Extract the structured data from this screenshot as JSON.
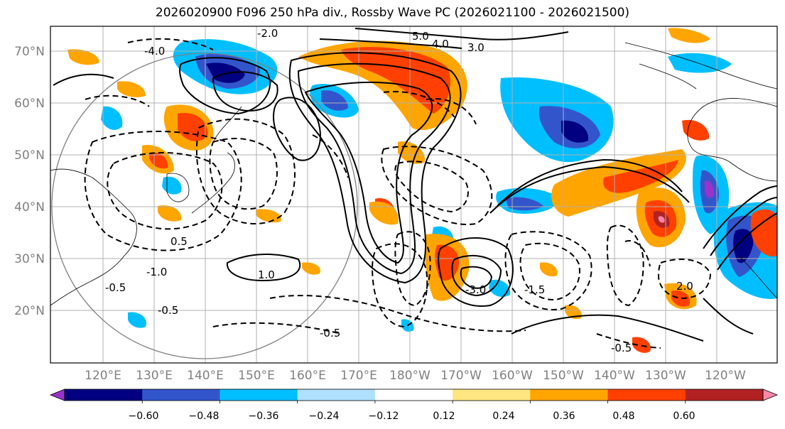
{
  "title": "2026020900 F096 250 hPa div., Rossby Wave PC (2026021100 - 2026021500)",
  "lat_labels": [
    "70°N",
    "60°N",
    "50°N",
    "40°N",
    "30°N",
    "20°N"
  ],
  "lon_labels": [
    "120°E",
    "130°E",
    "140°E",
    "150°E",
    "160°E",
    "170°E",
    "180°W",
    "170°W",
    "160°W",
    "150°W",
    "140°W",
    "130°W",
    "120°W"
  ],
  "colorbar": {
    "ticks": [
      "−0.60",
      "−0.48",
      "−0.36",
      "−0.24",
      "−0.12",
      "0.12",
      "0.24",
      "0.36",
      "0.48",
      "0.60"
    ],
    "colors": [
      "#9933cc",
      "#000080",
      "#3355cc",
      "#00bfff",
      "#b0e0ff",
      "#ffffff",
      "#ffe680",
      "#ffa500",
      "#ff4000",
      "#b22222",
      "#ff88aa"
    ]
  },
  "contour_labels": [
    "-2.0",
    "-4.0",
    "5.0",
    "4.0",
    "3.0",
    "-1.0",
    "1.0",
    "-0.5",
    "0.5",
    "-1.5",
    "2.0",
    "-3.0",
    "-0.5",
    "-0.5",
    "-0.5"
  ]
}
